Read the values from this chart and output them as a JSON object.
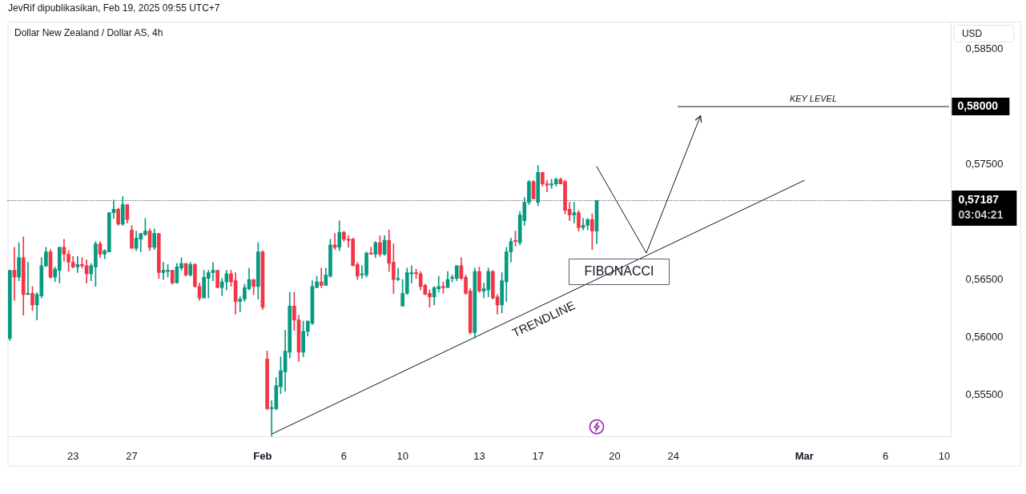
{
  "chart_data": {
    "type": "candlestick",
    "title": "Dollar New Zealand / Dollar AS, 4h",
    "ylabel": "USD",
    "annotations": [
      "JevRif dipublikasikan, Feb 19, 2025 09:55 UTC+7",
      {
        "text": "FIBONACCI",
        "y": 0.5657
      },
      "03:04:21"
    ],
    "categories": [
      null,
      null,
      null,
      null,
      null,
      null,
      null,
      null,
      null,
      null,
      null,
      null,
      null,
      null,
      "23",
      null,
      null,
      null,
      null,
      null,
      null,
      null,
      null,
      null,
      null,
      null,
      null,
      "27",
      null,
      null,
      null,
      null,
      null,
      null,
      null,
      null,
      null,
      null,
      null,
      null,
      null,
      null,
      null,
      null,
      null,
      null,
      null,
      null,
      null,
      null,
      null,
      null,
      null,
      null,
      null,
      null,
      "Feb",
      null,
      null,
      null,
      null,
      null,
      null,
      null,
      null,
      null,
      null,
      null,
      null,
      null,
      null,
      null,
      null,
      null,
      "6",
      null,
      null,
      null,
      null,
      null,
      null,
      null,
      null,
      null,
      null,
      null,
      null,
      "10",
      null,
      null,
      null,
      null,
      null,
      null,
      null,
      null,
      null,
      null,
      null,
      null,
      null,
      null,
      null,
      null,
      "13",
      null,
      null,
      null,
      null,
      null,
      null,
      null,
      null,
      null,
      null,
      null,
      null,
      "17",
      null,
      null,
      null,
      null,
      null,
      null,
      null,
      null,
      null,
      null,
      null,
      null,
      null,
      null,
      null,
      null,
      "20",
      null,
      null,
      null,
      null,
      null,
      null,
      null,
      null,
      null,
      null,
      null,
      null,
      "24",
      null,
      null,
      null,
      null,
      null,
      null,
      null,
      null,
      null,
      null,
      null,
      null,
      null,
      null,
      null,
      null,
      null,
      null,
      null,
      null,
      null,
      null,
      null,
      null,
      null,
      null,
      null,
      null,
      "Mar",
      null,
      null,
      null,
      null,
      null,
      null,
      null,
      null,
      null,
      null,
      null,
      null,
      null,
      null,
      null,
      null,
      null,
      "6",
      null,
      null,
      null,
      null,
      null,
      null,
      null,
      null,
      null,
      null,
      null,
      null,
      "10",
      null
    ],
    "ohlc": [
      [
        0.5599,
        0.5658,
        0.5597,
        0.5658
      ],
      [
        0.5658,
        0.5678,
        0.5632,
        0.5652
      ],
      [
        0.5652,
        0.5682,
        0.5649,
        0.5669
      ],
      [
        0.5669,
        0.5687,
        0.5619,
        0.5637
      ],
      [
        0.5637,
        0.5665,
        0.5637,
        0.5638
      ],
      [
        0.5638,
        0.5644,
        0.5623,
        0.5628
      ],
      [
        0.5628,
        0.5639,
        0.5615,
        0.5637
      ],
      [
        0.5636,
        0.5669,
        0.5634,
        0.5662
      ],
      [
        0.5662,
        0.5678,
        0.5661,
        0.5674
      ],
      [
        0.5674,
        0.5676,
        0.5651,
        0.5652
      ],
      [
        0.5652,
        0.5661,
        0.5648,
        0.5659
      ],
      [
        0.5658,
        0.5678,
        0.5647,
        0.5678
      ],
      [
        0.5678,
        0.5685,
        0.5666,
        0.5672
      ],
      [
        0.5672,
        0.5675,
        0.5657,
        0.5665
      ],
      [
        0.5665,
        0.567,
        0.566,
        0.5661
      ],
      [
        0.5661,
        0.567,
        0.5656,
        0.5663
      ],
      [
        0.5663,
        0.5669,
        0.566,
        0.5662
      ],
      [
        0.5662,
        0.5667,
        0.5647,
        0.5655
      ],
      [
        0.5655,
        0.5664,
        0.5649,
        0.5662
      ],
      [
        0.5661,
        0.5683,
        0.5644,
        0.5681
      ],
      [
        0.5681,
        0.5683,
        0.5669,
        0.5672
      ],
      [
        0.5672,
        0.5676,
        0.5668,
        0.5675
      ],
      [
        0.5674,
        0.5708,
        0.5674,
        0.5708
      ],
      [
        0.5708,
        0.5719,
        0.5703,
        0.5711
      ],
      [
        0.5711,
        0.5712,
        0.5697,
        0.5698
      ],
      [
        0.5698,
        0.5722,
        0.5697,
        0.5715
      ],
      [
        0.5715,
        0.5715,
        0.5699,
        0.5702
      ],
      [
        0.5693,
        0.5697,
        0.5677,
        0.5677
      ],
      [
        0.5677,
        0.5692,
        0.5675,
        0.5686
      ],
      [
        0.5685,
        0.569,
        0.5674,
        0.569
      ],
      [
        0.5689,
        0.5703,
        0.5688,
        0.5692
      ],
      [
        0.5692,
        0.5694,
        0.5675,
        0.5678
      ],
      [
        0.5678,
        0.5694,
        0.5676,
        0.569
      ],
      [
        0.569,
        0.569,
        0.5651,
        0.5656
      ],
      [
        0.5656,
        0.5665,
        0.565,
        0.5658
      ],
      [
        0.5657,
        0.5663,
        0.5652,
        0.5658
      ],
      [
        0.5658,
        0.5658,
        0.5646,
        0.5647
      ],
      [
        0.5647,
        0.5664,
        0.5647,
        0.5661
      ],
      [
        0.566,
        0.5669,
        0.5658,
        0.5664
      ],
      [
        0.5664,
        0.5664,
        0.5653,
        0.5654
      ],
      [
        0.5654,
        0.5665,
        0.5653,
        0.5663
      ],
      [
        0.5663,
        0.5664,
        0.5643,
        0.5644
      ],
      [
        0.5644,
        0.5647,
        0.5632,
        0.5634
      ],
      [
        0.5634,
        0.5658,
        0.5634,
        0.5652
      ],
      [
        0.5651,
        0.5658,
        0.5634,
        0.5656
      ],
      [
        0.5656,
        0.5665,
        0.5649,
        0.5658
      ],
      [
        0.5658,
        0.5658,
        0.5643,
        0.5643
      ],
      [
        0.5643,
        0.5651,
        0.5636,
        0.5648
      ],
      [
        0.5648,
        0.5658,
        0.5641,
        0.5655
      ],
      [
        0.5655,
        0.5658,
        0.5644,
        0.5648
      ],
      [
        0.5649,
        0.5656,
        0.562,
        0.5631
      ],
      [
        0.5631,
        0.5635,
        0.5622,
        0.5633
      ],
      [
        0.5633,
        0.5646,
        0.5631,
        0.5643
      ],
      [
        0.5642,
        0.566,
        0.5641,
        0.565
      ],
      [
        0.565,
        0.565,
        0.5637,
        0.5644
      ],
      [
        0.5644,
        0.5682,
        0.5633,
        0.5674
      ],
      [
        0.5674,
        0.5675,
        0.5624,
        0.5626
      ],
      [
        0.5581,
        0.5588,
        0.5537,
        0.5538
      ],
      [
        0.5538,
        0.5545,
        0.5514,
        0.5539
      ],
      [
        0.5538,
        0.5565,
        0.5537,
        0.5558
      ],
      [
        0.5557,
        0.5583,
        0.5551,
        0.5571
      ],
      [
        0.557,
        0.5606,
        0.5553,
        0.5588
      ],
      [
        0.5587,
        0.5639,
        0.5582,
        0.5627
      ],
      [
        0.5627,
        0.5639,
        0.5606,
        0.5615
      ],
      [
        0.5615,
        0.5619,
        0.5579,
        0.5587
      ],
      [
        0.5587,
        0.5614,
        0.5583,
        0.5605
      ],
      [
        0.5605,
        0.5614,
        0.5601,
        0.5614
      ],
      [
        0.5612,
        0.5649,
        0.5611,
        0.5644
      ],
      [
        0.5643,
        0.5653,
        0.5643,
        0.5648
      ],
      [
        0.5648,
        0.566,
        0.5643,
        0.5645
      ],
      [
        0.5645,
        0.566,
        0.5645,
        0.5654
      ],
      [
        0.5653,
        0.5685,
        0.5652,
        0.568
      ],
      [
        0.568,
        0.569,
        0.5676,
        0.5678
      ],
      [
        0.5678,
        0.5701,
        0.5675,
        0.5691
      ],
      [
        0.5691,
        0.5692,
        0.5683,
        0.5685
      ],
      [
        0.5685,
        0.5688,
        0.5678,
        0.5684
      ],
      [
        0.5685,
        0.5686,
        0.5662,
        0.5662
      ],
      [
        0.5663,
        0.5665,
        0.565,
        0.5653
      ],
      [
        0.5654,
        0.5662,
        0.5651,
        0.5655
      ],
      [
        0.5654,
        0.5674,
        0.5652,
        0.5673
      ],
      [
        0.5673,
        0.5678,
        0.5672,
        0.5672
      ],
      [
        0.5672,
        0.5683,
        0.5669,
        0.5682
      ],
      [
        0.5682,
        0.5688,
        0.567,
        0.5672
      ],
      [
        0.5672,
        0.5688,
        0.5671,
        0.5684
      ],
      [
        0.5684,
        0.5693,
        0.5657,
        0.5664
      ],
      [
        0.5665,
        0.5681,
        0.5638,
        0.565
      ],
      [
        0.565,
        0.566,
        0.5649,
        0.5651
      ],
      [
        0.5627,
        0.565,
        0.5627,
        0.5638
      ],
      [
        0.5638,
        0.566,
        0.5637,
        0.5656
      ],
      [
        0.5655,
        0.5662,
        0.5647,
        0.5656
      ],
      [
        0.5656,
        0.5659,
        0.5651,
        0.5655
      ],
      [
        0.5655,
        0.5657,
        0.5641,
        0.5644
      ],
      [
        0.5645,
        0.5646,
        0.5637,
        0.5637
      ],
      [
        0.5638,
        0.5641,
        0.5626,
        0.5635
      ],
      [
        0.5635,
        0.5644,
        0.5628,
        0.5643
      ],
      [
        0.5642,
        0.5653,
        0.5639,
        0.5644
      ],
      [
        0.5644,
        0.5648,
        0.5638,
        0.5643
      ],
      [
        0.5643,
        0.5657,
        0.5643,
        0.565
      ],
      [
        0.5651,
        0.5654,
        0.5648,
        0.5652
      ],
      [
        0.5651,
        0.5662,
        0.5649,
        0.5662
      ],
      [
        0.5662,
        0.5669,
        0.565,
        0.5651
      ],
      [
        0.5652,
        0.5654,
        0.5637,
        0.5638
      ],
      [
        0.564,
        0.5642,
        0.5603,
        0.5604
      ],
      [
        0.5604,
        0.566,
        0.5599,
        0.5657
      ],
      [
        0.5657,
        0.5661,
        0.5639,
        0.564
      ],
      [
        0.564,
        0.5647,
        0.5634,
        0.5642
      ],
      [
        0.5641,
        0.566,
        0.5635,
        0.5657
      ],
      [
        0.5657,
        0.5658,
        0.5633,
        0.5634
      ],
      [
        0.5635,
        0.5637,
        0.562,
        0.5628
      ],
      [
        0.5628,
        0.5656,
        0.5621,
        0.5649
      ],
      [
        0.5648,
        0.5678,
        0.5631,
        0.5674
      ],
      [
        0.5674,
        0.5686,
        0.5665,
        0.5683
      ],
      [
        0.5684,
        0.5692,
        0.5679,
        0.5683
      ],
      [
        0.5682,
        0.5709,
        0.568,
        0.5706
      ],
      [
        0.5701,
        0.5721,
        0.5697,
        0.5717
      ],
      [
        0.5717,
        0.5736,
        0.5715,
        0.5735
      ],
      [
        0.5735,
        0.5736,
        0.572,
        0.572
      ],
      [
        0.5717,
        0.5749,
        0.5714,
        0.5743
      ],
      [
        0.5743,
        0.5743,
        0.5731,
        0.5733
      ],
      [
        0.5733,
        0.5736,
        0.5726,
        0.5732
      ],
      [
        0.5732,
        0.5737,
        0.5729,
        0.5733
      ],
      [
        0.5733,
        0.5738,
        0.5731,
        0.5737
      ],
      [
        0.5737,
        0.5738,
        0.5733,
        0.5733
      ],
      [
        0.5735,
        0.5736,
        0.5707,
        0.571
      ],
      [
        0.5711,
        0.5717,
        0.5701,
        0.5706
      ],
      [
        0.5706,
        0.5717,
        0.5699,
        0.5708
      ],
      [
        0.5708,
        0.571,
        0.5692,
        0.5695
      ],
      [
        0.5695,
        0.5703,
        0.5693,
        0.5697
      ],
      [
        0.5697,
        0.5703,
        0.5693,
        0.5702
      ],
      [
        0.5702,
        0.5707,
        0.5676,
        0.5692
      ],
      [
        0.5692,
        0.57187,
        0.5681,
        0.57187
      ],
      null,
      null,
      null,
      null,
      null,
      null,
      null,
      null,
      null,
      null,
      null,
      null,
      null,
      null,
      null,
      null,
      null,
      null,
      null,
      null,
      null,
      null,
      null,
      null,
      null,
      null,
      null,
      null,
      null,
      null,
      null,
      null,
      null,
      null,
      null,
      null,
      null,
      null,
      null,
      null,
      null,
      null,
      null,
      null,
      null,
      null,
      null,
      null,
      null,
      null,
      null,
      null,
      null,
      null,
      null,
      null,
      null,
      null,
      null,
      null,
      null,
      null,
      null,
      null,
      null,
      null,
      null,
      null,
      null,
      null,
      null,
      null,
      null,
      null,
      null,
      null,
      null,
      null
    ],
    "colors": [
      "#089981",
      "#f23645",
      "#089981",
      "#f23645",
      "#089981",
      "#f23645",
      "#089981",
      "#089981",
      "#089981",
      "#f23645",
      "#089981",
      "#089981",
      "#f23645",
      "#f23645",
      "#f23645",
      "#089981",
      "#f23645",
      "#f23645",
      "#089981",
      "#089981",
      "#f23645",
      "#089981",
      "#089981",
      "#089981",
      "#f23645",
      "#089981",
      "#f23645",
      "#f23645",
      "#089981",
      "#089981",
      "#089981",
      "#f23645",
      "#089981",
      "#f23645",
      "#089981",
      "#089981",
      "#f23645",
      "#089981",
      "#089981",
      "#f23645",
      "#089981",
      "#f23645",
      "#f23645",
      "#089981",
      "#089981",
      "#089981",
      "#f23645",
      "#089981",
      "#089981",
      "#f23645",
      "#f23645",
      "#089981",
      "#089981",
      "#089981",
      "#f23645",
      "#089981",
      "#f23645",
      "#f23645",
      "#089981",
      "#089981",
      "#089981",
      "#089981",
      "#089981",
      "#f23645",
      "#f23645",
      "#089981",
      "#089981",
      "#089981",
      "#089981",
      "#f23645",
      "#089981",
      "#089981",
      "#f23645",
      "#089981",
      "#f23645",
      "#f23645",
      "#f23645",
      "#f23645",
      "#089981",
      "#089981",
      "#f23645",
      "#089981",
      "#f23645",
      "#089981",
      "#f23645",
      "#f23645",
      "#089981",
      "#089981",
      "#089981",
      "#089981",
      "#f23645",
      "#f23645",
      "#f23645",
      "#f23645",
      "#089981",
      "#089981",
      "#f23645",
      "#089981",
      "#089981",
      "#089981",
      "#f23645",
      "#f23645",
      "#f23645",
      "#089981",
      "#f23645",
      "#089981",
      "#089981",
      "#f23645",
      "#f23645",
      "#089981",
      "#089981",
      "#089981",
      "#f23645",
      "#089981",
      "#089981",
      "#089981",
      "#f23645",
      "#089981",
      "#f23645",
      "#f23645",
      "#089981",
      "#089981",
      "#f23645",
      "#f23645",
      "#f23645",
      "#089981",
      "#f23645",
      "#089981",
      "#089981",
      "#f23645",
      "#089981",
      null,
      null,
      null,
      null,
      null,
      null,
      null,
      null,
      null,
      null,
      null,
      null,
      null,
      null,
      null,
      null,
      null,
      null,
      null,
      null,
      null,
      null,
      null,
      null,
      null,
      null,
      null,
      null,
      null,
      null,
      null,
      null,
      null,
      null,
      null,
      null,
      null,
      null,
      null,
      null,
      null,
      null,
      null,
      null,
      null,
      null,
      null,
      null,
      null,
      null,
      null,
      null,
      null,
      null,
      null,
      null,
      null,
      null,
      null,
      null,
      null,
      null,
      null,
      null,
      null,
      null,
      null,
      null,
      null,
      null,
      null,
      null,
      null,
      null,
      null,
      null,
      null,
      null
    ],
    "series": [
      {
        "type": "line",
        "name": "TRENDLINE",
        "color": "#131722",
        "values": [
          null,
          null,
          null,
          null,
          null,
          null,
          null,
          null,
          null,
          null,
          null,
          null,
          null,
          null,
          null,
          null,
          null,
          null,
          null,
          null,
          null,
          null,
          null,
          null,
          null,
          null,
          null,
          null,
          null,
          null,
          null,
          null,
          null,
          null,
          null,
          null,
          null,
          null,
          null,
          null,
          null,
          null,
          null,
          null,
          null,
          null,
          null,
          null,
          null,
          null,
          null,
          null,
          null,
          null,
          null,
          null,
          null,
          null,
          0.5516,
          null,
          null,
          null,
          null,
          null,
          null,
          null,
          null,
          null,
          null,
          null,
          null,
          null,
          null,
          null,
          null,
          null,
          null,
          null,
          null,
          null,
          null,
          null,
          null,
          null,
          null,
          null,
          null,
          null,
          null,
          null,
          null,
          null,
          null,
          null,
          null,
          null,
          null,
          null,
          null,
          null,
          null,
          null,
          null,
          null,
          null,
          null,
          null,
          null,
          null,
          null,
          null,
          null,
          null,
          null,
          null,
          null,
          null,
          null,
          null,
          null,
          null,
          null,
          null,
          null,
          null,
          null,
          null,
          null,
          null,
          null,
          null,
          null,
          null,
          null,
          null,
          null,
          null,
          null,
          null,
          null,
          null,
          null,
          null,
          null,
          null,
          null,
          null,
          null,
          null,
          null,
          null,
          null,
          null,
          null,
          null,
          null,
          null,
          null,
          null,
          null,
          null,
          null,
          null,
          null,
          null,
          null,
          null,
          null,
          null,
          null,
          null,
          null,
          null,
          null,
          null,
          null,
          0.5736,
          null,
          null,
          null,
          null,
          null,
          null,
          null,
          null,
          null,
          null,
          null,
          null,
          null,
          null,
          null,
          null,
          null,
          null,
          null,
          null,
          null,
          null,
          null,
          null,
          null,
          null,
          null,
          null,
          null,
          null,
          null,
          null
        ]
      },
      {
        "type": "line",
        "name": "KEY LEVEL",
        "color": "#131722",
        "values": [
          null,
          null,
          null,
          null,
          null,
          null,
          null,
          null,
          null,
          null,
          null,
          null,
          null,
          null,
          null,
          null,
          null,
          null,
          null,
          null,
          null,
          null,
          null,
          null,
          null,
          null,
          null,
          null,
          null,
          null,
          null,
          null,
          null,
          null,
          null,
          null,
          null,
          null,
          null,
          null,
          null,
          null,
          null,
          null,
          null,
          null,
          null,
          null,
          null,
          null,
          null,
          null,
          null,
          null,
          null,
          null,
          null,
          null,
          null,
          null,
          null,
          null,
          null,
          null,
          null,
          null,
          null,
          null,
          null,
          null,
          null,
          null,
          null,
          null,
          null,
          null,
          null,
          null,
          null,
          null,
          null,
          null,
          null,
          null,
          null,
          null,
          null,
          null,
          null,
          null,
          null,
          null,
          null,
          null,
          null,
          null,
          null,
          null,
          null,
          null,
          null,
          null,
          null,
          null,
          null,
          null,
          null,
          null,
          null,
          null,
          null,
          null,
          null,
          null,
          null,
          null,
          null,
          null,
          null,
          null,
          null,
          null,
          null,
          null,
          null,
          null,
          null,
          null,
          null,
          null,
          null,
          null,
          null,
          null,
          null,
          null,
          null,
          null,
          null,
          null,
          null,
          null,
          null,
          null,
          null,
          null,
          null,
          null,
          0.58,
          null,
          null,
          null,
          null,
          null,
          null,
          null,
          null,
          null,
          null,
          null,
          null,
          null,
          null,
          null,
          null,
          null,
          null,
          null,
          null,
          null,
          null,
          null,
          null,
          null,
          null,
          null,
          null,
          null,
          null,
          null,
          null,
          null,
          null,
          null,
          null,
          null,
          null,
          null,
          null,
          null,
          null,
          null,
          null,
          null,
          null,
          null,
          null,
          null,
          null,
          null,
          null,
          null,
          null,
          null,
          null,
          null,
          null,
          null,
          0.58
        ],
        "value_labels": [
          null,
          null,
          null,
          null,
          null,
          null,
          null,
          null,
          null,
          null,
          null,
          null,
          null,
          null,
          null,
          null,
          null,
          null,
          null,
          null,
          null,
          null,
          null,
          null,
          null,
          null,
          null,
          null,
          null,
          null,
          null,
          null,
          null,
          null,
          null,
          null,
          null,
          null,
          null,
          null,
          null,
          null,
          null,
          null,
          null,
          null,
          null,
          null,
          null,
          null,
          null,
          null,
          null,
          null,
          null,
          null,
          null,
          null,
          null,
          null,
          null,
          null,
          null,
          null,
          null,
          null,
          null,
          null,
          null,
          null,
          null,
          null,
          null,
          null,
          null,
          null,
          null,
          null,
          null,
          null,
          null,
          null,
          null,
          null,
          null,
          null,
          null,
          null,
          null,
          null,
          null,
          null,
          null,
          null,
          null,
          null,
          null,
          null,
          null,
          null,
          null,
          null,
          null,
          null,
          null,
          null,
          null,
          null,
          null,
          null,
          null,
          null,
          null,
          null,
          null,
          null,
          null,
          null,
          null,
          null,
          null,
          null,
          null,
          null,
          null,
          null,
          null,
          null,
          null,
          null,
          null,
          null,
          null,
          null,
          null,
          null,
          null,
          null,
          null,
          null,
          null,
          null,
          null,
          null,
          null,
          null,
          null,
          null,
          null,
          null,
          null,
          null,
          null,
          null,
          null,
          null,
          null,
          null,
          null,
          null,
          null,
          null,
          null,
          null,
          null,
          null,
          null,
          null,
          null,
          null,
          null,
          null,
          null,
          null,
          null,
          null,
          null,
          null,
          null,
          null,
          null,
          null,
          null,
          null,
          null,
          null,
          null,
          null,
          null,
          null,
          null,
          null,
          null,
          null,
          null,
          null,
          null,
          null,
          null,
          null,
          null,
          null,
          null,
          null,
          null,
          null,
          null,
          null,
          "0,58000"
        ]
      },
      {
        "type": "line",
        "color": "#131722",
        "values": [
          null,
          null,
          null,
          null,
          null,
          null,
          null,
          null,
          null,
          null,
          null,
          null,
          null,
          null,
          null,
          null,
          null,
          null,
          null,
          null,
          null,
          null,
          null,
          null,
          null,
          null,
          null,
          null,
          null,
          null,
          null,
          null,
          null,
          null,
          null,
          null,
          null,
          null,
          null,
          null,
          null,
          null,
          null,
          null,
          null,
          null,
          null,
          null,
          null,
          null,
          null,
          null,
          null,
          null,
          null,
          null,
          null,
          null,
          null,
          null,
          null,
          null,
          null,
          null,
          null,
          null,
          null,
          null,
          null,
          null,
          null,
          null,
          null,
          null,
          null,
          null,
          null,
          null,
          null,
          null,
          null,
          null,
          null,
          null,
          null,
          null,
          null,
          null,
          null,
          null,
          null,
          null,
          null,
          null,
          null,
          null,
          null,
          null,
          null,
          null,
          null,
          null,
          null,
          null,
          null,
          null,
          null,
          null,
          null,
          null,
          null,
          null,
          null,
          null,
          null,
          null,
          null,
          null,
          null,
          null,
          null,
          null,
          null,
          null,
          null,
          null,
          null,
          null,
          null,
          null,
          0.5748,
          null,
          null,
          null,
          null,
          null,
          null,
          null,
          null,
          null,
          null,
          0.5673,
          null,
          null,
          null,
          null,
          null,
          null,
          null,
          null,
          null,
          null,
          null,
          0.5792,
          null,
          null,
          null,
          null,
          null,
          null,
          null,
          null,
          null,
          null,
          null,
          null,
          null,
          null,
          null,
          null,
          null,
          null,
          null,
          null,
          null,
          null,
          null,
          null,
          null,
          null,
          null,
          null,
          null,
          null,
          null,
          null,
          null,
          null,
          null,
          null,
          null,
          null,
          null,
          null,
          null,
          null,
          null,
          null,
          null,
          null,
          null,
          null,
          null,
          null,
          null,
          null,
          null,
          null,
          null
        ]
      }
    ],
    "ylim": [
      0.5514,
      0.5873
    ],
    "yticks": [
      {
        "value": 0.555,
        "label": "0,55500"
      },
      {
        "value": 0.56,
        "label": "0,56000"
      },
      {
        "value": 0.565,
        "label": "0,56500"
      },
      {
        "value": 0.575,
        "label": "0,57500"
      },
      {
        "value": 0.585,
        "label": "0,58500"
      }
    ],
    "ref_lines": [
      {
        "axis": "y",
        "value": 0.57187,
        "label": "0,57187",
        "line_style": "dotted",
        "color": "#131722"
      }
    ]
  }
}
